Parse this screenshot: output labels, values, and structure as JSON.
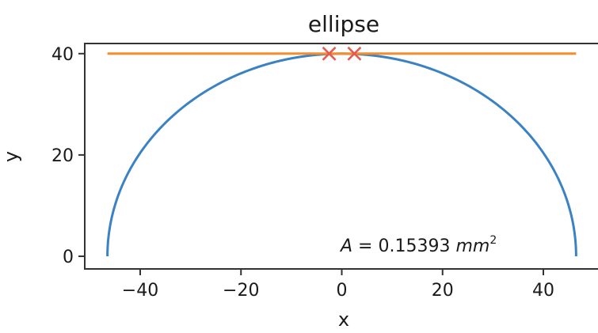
{
  "chart_data": {
    "type": "line",
    "title": "ellipse",
    "xlabel": "x",
    "ylabel": "y",
    "xlim": [
      -51,
      51
    ],
    "ylim": [
      -2.5,
      42
    ],
    "xticks": [
      -40,
      -20,
      0,
      20,
      40
    ],
    "yticks": [
      0,
      20,
      40
    ],
    "grid": false,
    "series": [
      {
        "kind": "curve",
        "color": "#3b82c4",
        "description": "upper half ellipse",
        "a": 46.5,
        "b": 40
      },
      {
        "kind": "line",
        "color": "#f28e2b",
        "x": [
          -46.5,
          46.5
        ],
        "y": [
          40,
          40
        ]
      },
      {
        "kind": "markers",
        "marker": "x",
        "color": "#e8584f",
        "x": [
          -2.5,
          2.5
        ],
        "y": [
          40,
          40
        ]
      }
    ],
    "annotation": {
      "lhs": "A",
      "eq": " = 0.15393 ",
      "unit": "mm",
      "exp": "2"
    }
  }
}
